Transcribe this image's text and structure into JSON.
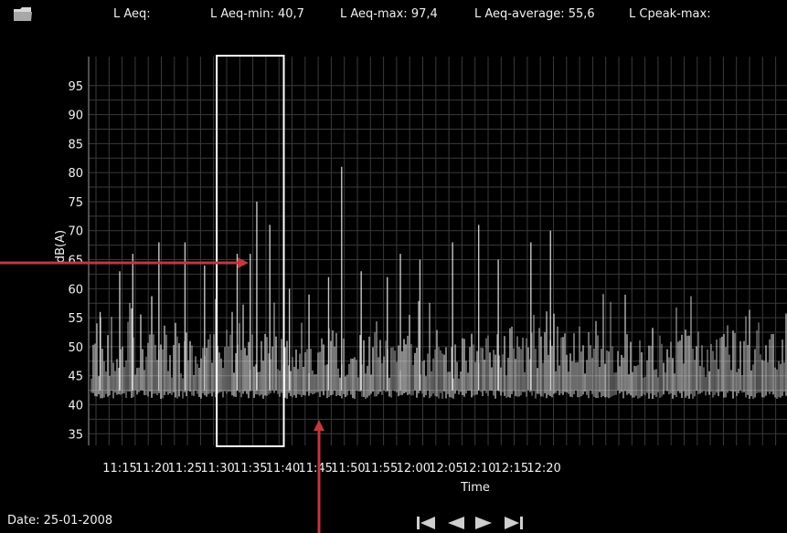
{
  "header": {
    "laeq": "L Aeq:",
    "laeq_min": "L Aeq-min: 40,7",
    "laeq_max": "L Aeq-max: 97,4",
    "laeq_avg": "L Aeq-average: 55,6",
    "lcpeak_max": "L Cpeak-max:",
    "folder_icon": "folder-icon"
  },
  "footer": {
    "date": "Date: 25-01-2008",
    "nav_icons": [
      "skip-first-icon",
      "previous-icon",
      "next-icon",
      "skip-last-icon"
    ]
  },
  "colors": {
    "background": "#000000",
    "grid": "#3a3a3a",
    "trace": "#e8e8e8",
    "highlight_box": "#ffffff",
    "arrow": "#c0393b"
  },
  "chart_data": {
    "type": "line",
    "xlabel": "Time",
    "ylabel": "dB(A)",
    "ylim": [
      33,
      100
    ],
    "yticks": [
      "95",
      "90",
      "85",
      "80",
      "75",
      "70",
      "65",
      "60",
      "55",
      "50",
      "45",
      "40",
      "35"
    ],
    "xticks": [
      "11:15",
      "11:20",
      "11:25",
      "11:30",
      "11:35",
      "11:40",
      "11:45",
      "11:50",
      "11:55",
      "12:00",
      "12:05",
      "12:10",
      "12:15",
      "12:20"
    ],
    "grid": true,
    "baseline_level": 42.5,
    "peaks": [
      {
        "time": "11:12",
        "value": 56
      },
      {
        "time": "11:15",
        "value": 63
      },
      {
        "time": "11:17",
        "value": 66
      },
      {
        "time": "11:21",
        "value": 68
      },
      {
        "time": "11:25",
        "value": 68
      },
      {
        "time": "11:28",
        "value": 64
      },
      {
        "time": "11:33",
        "value": 66
      },
      {
        "time": "11:35",
        "value": 66
      },
      {
        "time": "11:36",
        "value": 75
      },
      {
        "time": "11:38",
        "value": 71
      },
      {
        "time": "11:41",
        "value": 60
      },
      {
        "time": "11:44",
        "value": 59
      },
      {
        "time": "11:47",
        "value": 62
      },
      {
        "time": "11:49",
        "value": 81
      },
      {
        "time": "11:52",
        "value": 63
      },
      {
        "time": "11:56",
        "value": 62
      },
      {
        "time": "11:58",
        "value": 66
      },
      {
        "time": "12:01",
        "value": 65
      },
      {
        "time": "12:06",
        "value": 68
      },
      {
        "time": "12:10",
        "value": 71
      },
      {
        "time": "12:13",
        "value": 65
      },
      {
        "time": "12:18",
        "value": 68
      },
      {
        "time": "12:21",
        "value": 70
      }
    ],
    "highlight": {
      "from": "11:30",
      "to": "11:40"
    }
  }
}
